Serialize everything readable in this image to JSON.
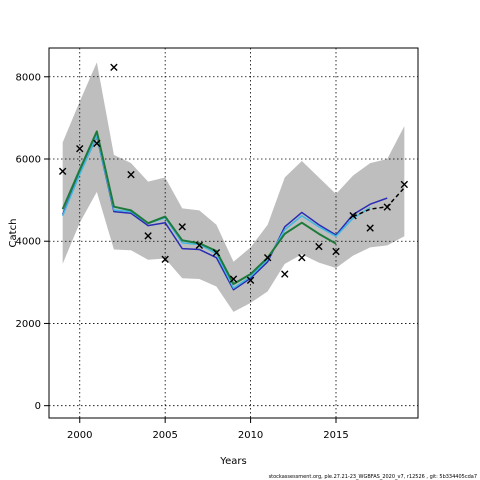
{
  "footer": {
    "source": "stockassessment.org, ple.27.21-23_WGBFAS_2020_v7, r12526 , git: 5b334405cda7"
  },
  "chart_data": {
    "type": "line",
    "xlabel": "Years",
    "ylabel": "Catch",
    "xlim": [
      1998.2,
      2019.8
    ],
    "ylim": [
      -300,
      8700
    ],
    "xticks": [
      2000,
      2005,
      2010,
      2015
    ],
    "yticks": [
      0,
      2000,
      4000,
      6000,
      8000
    ],
    "grid": true,
    "colors": {
      "band": "#bebebe",
      "blue": "#2b2bb4",
      "cyan": "#40b8e0",
      "green": "#1e7a3a",
      "black": "#000000"
    },
    "band": {
      "x": [
        1999,
        2000,
        2001,
        2002,
        2003,
        2004,
        2005,
        2006,
        2007,
        2008,
        2009,
        2010,
        2011,
        2012,
        2013,
        2014,
        2015,
        2016,
        2017,
        2018,
        2019
      ],
      "upper": [
        6400,
        7400,
        8350,
        6100,
        5900,
        5450,
        5550,
        4800,
        4750,
        4400,
        3500,
        3850,
        4400,
        5550,
        5950,
        5550,
        5150,
        5600,
        5900,
        6000,
        6800
      ],
      "lower": [
        3450,
        4450,
        5200,
        3800,
        3780,
        3550,
        3580,
        3100,
        3080,
        2900,
        2280,
        2500,
        2780,
        3450,
        3680,
        3480,
        3350,
        3650,
        3850,
        3900,
        4120
      ]
    },
    "series": [
      {
        "color": "blue",
        "x": [
          1999,
          2000,
          2001,
          2002,
          2003,
          2004,
          2005,
          2006,
          2007,
          2008,
          2009,
          2010,
          2011,
          2012,
          2013,
          2014,
          2015,
          2016,
          2017,
          2018
        ],
        "values": [
          4650,
          5650,
          6550,
          4720,
          4680,
          4380,
          4450,
          3820,
          3800,
          3600,
          2820,
          3100,
          3500,
          4350,
          4700,
          4400,
          4150,
          4650,
          4900,
          5050
        ]
      },
      {
        "color": "cyan",
        "x": [
          1999,
          2000,
          2001,
          2002,
          2003,
          2004,
          2005,
          2006,
          2007,
          2008,
          2009,
          2010,
          2011,
          2012,
          2013,
          2014,
          2015,
          2016,
          2017
        ],
        "values": [
          4620,
          5630,
          6560,
          4760,
          4720,
          4430,
          4570,
          3960,
          3920,
          3700,
          2860,
          3140,
          3560,
          4280,
          4620,
          4350,
          4120,
          4560,
          4820
        ]
      },
      {
        "color": "green",
        "x": [
          1999,
          2000,
          2001,
          2002,
          2003,
          2004,
          2005,
          2006,
          2007,
          2008,
          2009,
          2010,
          2011,
          2012,
          2013,
          2014,
          2015
        ],
        "values": [
          4780,
          5740,
          6670,
          4840,
          4750,
          4440,
          4600,
          4020,
          3950,
          3760,
          2960,
          3200,
          3600,
          4180,
          4450,
          4180,
          3940
        ]
      },
      {
        "color": "black",
        "dashed": true,
        "x": [
          2016,
          2017,
          2018,
          2019
        ],
        "values": [
          4600,
          4780,
          4840,
          5300
        ]
      }
    ],
    "observations": {
      "x": [
        1999,
        2000,
        2001,
        2002,
        2003,
        2004,
        2005,
        2006,
        2007,
        2008,
        2009,
        2010,
        2011,
        2012,
        2013,
        2014,
        2015,
        2016,
        2017,
        2018,
        2019
      ],
      "values": [
        5700,
        6250,
        6380,
        8230,
        5620,
        4130,
        3560,
        4350,
        3900,
        3720,
        3080,
        3050,
        3600,
        3200,
        3600,
        3870,
        3750,
        4620,
        4320,
        4830,
        5380
      ]
    }
  }
}
